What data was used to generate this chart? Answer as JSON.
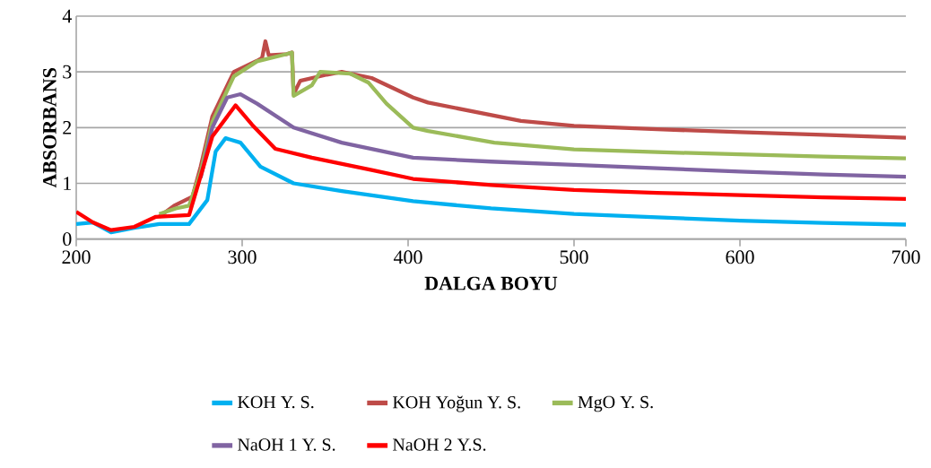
{
  "chart_data": {
    "type": "line",
    "xlabel": "DALGA BOYU",
    "ylabel": "ABSORBANS",
    "xlim": [
      200,
      700
    ],
    "ylim": [
      0,
      4
    ],
    "xticks": [
      200,
      300,
      400,
      500,
      600,
      700
    ],
    "yticks": [
      0,
      1,
      2,
      3,
      4
    ],
    "grid": "y",
    "legend": "bottom",
    "series": [
      {
        "name": "KOH Y. S.",
        "color": "#00b0f0",
        "x": [
          200,
          210,
          221,
          235,
          250,
          268,
          279,
          284,
          290,
          299,
          311,
          331,
          360,
          403,
          450,
          500,
          550,
          600,
          650,
          700
        ],
        "values": [
          0.27,
          0.3,
          0.12,
          0.2,
          0.27,
          0.27,
          0.7,
          1.57,
          1.81,
          1.73,
          1.3,
          1.0,
          0.86,
          0.68,
          0.55,
          0.45,
          0.39,
          0.33,
          0.29,
          0.26
        ]
      },
      {
        "name": "KOH Yoğun Y. S.",
        "color": "#be4b48",
        "x": [
          250,
          259,
          270,
          275,
          282,
          295,
          309,
          312,
          314,
          316,
          327,
          330,
          331,
          335,
          351,
          360,
          378,
          403,
          412,
          468,
          500,
          550,
          600,
          650,
          700
        ],
        "values": [
          0.4,
          0.6,
          0.76,
          1.3,
          2.2,
          3.0,
          3.2,
          3.25,
          3.55,
          3.3,
          3.32,
          3.35,
          2.6,
          2.84,
          2.95,
          3.0,
          2.89,
          2.54,
          2.45,
          2.12,
          2.03,
          1.97,
          1.92,
          1.87,
          1.82
        ]
      },
      {
        "name": "MgO Y. S.",
        "color": "#9bbb59",
        "x": [
          250,
          260,
          268,
          275,
          282,
          295,
          309,
          327,
          330,
          331,
          342,
          347,
          365,
          376,
          387,
          403,
          412,
          452,
          500,
          550,
          600,
          650,
          700
        ],
        "values": [
          0.45,
          0.55,
          0.6,
          1.2,
          2.1,
          2.92,
          3.19,
          3.32,
          3.35,
          2.57,
          2.76,
          3.0,
          2.97,
          2.81,
          2.43,
          2.0,
          1.94,
          1.73,
          1.61,
          1.56,
          1.52,
          1.48,
          1.45
        ]
      },
      {
        "name": "NaOH 1 Y. S.",
        "color": "#8064a2",
        "x": [
          275,
          282,
          291,
          299,
          309,
          331,
          360,
          403,
          450,
          500,
          550,
          600,
          650,
          700
        ],
        "values": [
          1.1,
          2.0,
          2.54,
          2.6,
          2.43,
          2.0,
          1.73,
          1.46,
          1.39,
          1.33,
          1.27,
          1.21,
          1.16,
          1.12
        ]
      },
      {
        "name": "NaOH 2 Y.S.",
        "color": "#ff0000",
        "x": [
          200,
          210,
          221,
          235,
          248,
          268,
          275,
          282,
          296,
          306,
          320,
          342,
          378,
          403,
          450,
          500,
          550,
          600,
          650,
          700
        ],
        "values": [
          0.49,
          0.3,
          0.16,
          0.22,
          0.4,
          0.43,
          1.13,
          1.84,
          2.4,
          2.05,
          1.62,
          1.46,
          1.24,
          1.08,
          0.97,
          0.88,
          0.83,
          0.79,
          0.75,
          0.72
        ]
      }
    ]
  }
}
